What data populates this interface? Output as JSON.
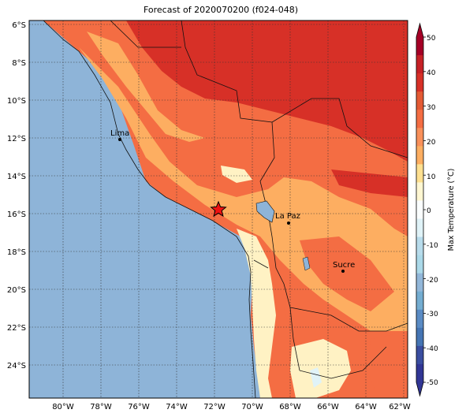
{
  "title": "Forecast of 2020070200 (f024-048)",
  "axes": {
    "lat_ticks": [
      "6°S",
      "8°S",
      "10°S",
      "12°S",
      "14°S",
      "16°S",
      "18°S",
      "20°S",
      "22°S",
      "24°S"
    ],
    "lon_ticks": [
      "80°W",
      "78°W",
      "76°W",
      "74°W",
      "72°W",
      "70°W",
      "68°W",
      "66°W",
      "64°W",
      "62°W"
    ]
  },
  "cities": [
    {
      "name": "Lima",
      "lat": -12.05,
      "lon": -77.04
    },
    {
      "name": "La Paz",
      "lat": -16.5,
      "lon": -68.15
    },
    {
      "name": "Sucre",
      "lat": -19.05,
      "lon": -65.26
    }
  ],
  "marker": {
    "type": "red-star",
    "lat": -15.8,
    "lon": -71.9
  },
  "colorbar": {
    "label": "Max Temperature (°C)",
    "ticks": [
      "50",
      "40",
      "30",
      "20",
      "10",
      "0",
      "-10",
      "-20",
      "-30",
      "-40",
      "-50"
    ],
    "levels": [
      {
        "range": "40 to 50",
        "color": "#a50026"
      },
      {
        "range": "35 to 40",
        "color": "#c62126"
      },
      {
        "range": "30 to 35",
        "color": "#d73027"
      },
      {
        "range": "25 to 30",
        "color": "#e45a34"
      },
      {
        "range": "20 to 25",
        "color": "#f46d43"
      },
      {
        "range": "15 to 20",
        "color": "#f9905a"
      },
      {
        "range": "10 to 15",
        "color": "#fdae61"
      },
      {
        "range": "5 to 10",
        "color": "#fee090"
      },
      {
        "range": "0 to 5",
        "color": "#fff7d2"
      },
      {
        "range": "-5 to 0",
        "color": "#fbfefe"
      },
      {
        "range": "-10 to -5",
        "color": "#e0f3f8"
      },
      {
        "range": "-15 to -10",
        "color": "#b8dcec"
      },
      {
        "range": "-20 to -15",
        "color": "#abd9e9"
      },
      {
        "range": "-25 to -20",
        "color": "#92b7d9"
      },
      {
        "range": "-30 to -25",
        "color": "#74add1"
      },
      {
        "range": "-35 to -30",
        "color": "#5a8bc4"
      },
      {
        "range": "-40 to -35",
        "color": "#4575b4"
      },
      {
        "range": "-45 to -40",
        "color": "#3a4ea0"
      },
      {
        "range": "-50 to -45",
        "color": "#313695"
      }
    ]
  },
  "colors": {
    "ocean": "#8eb4d8",
    "hot": "#d73027",
    "warm": "#f46d43",
    "mild": "#fdae61",
    "cool": "#fff2c4",
    "very_light": "#fdf9e6"
  }
}
